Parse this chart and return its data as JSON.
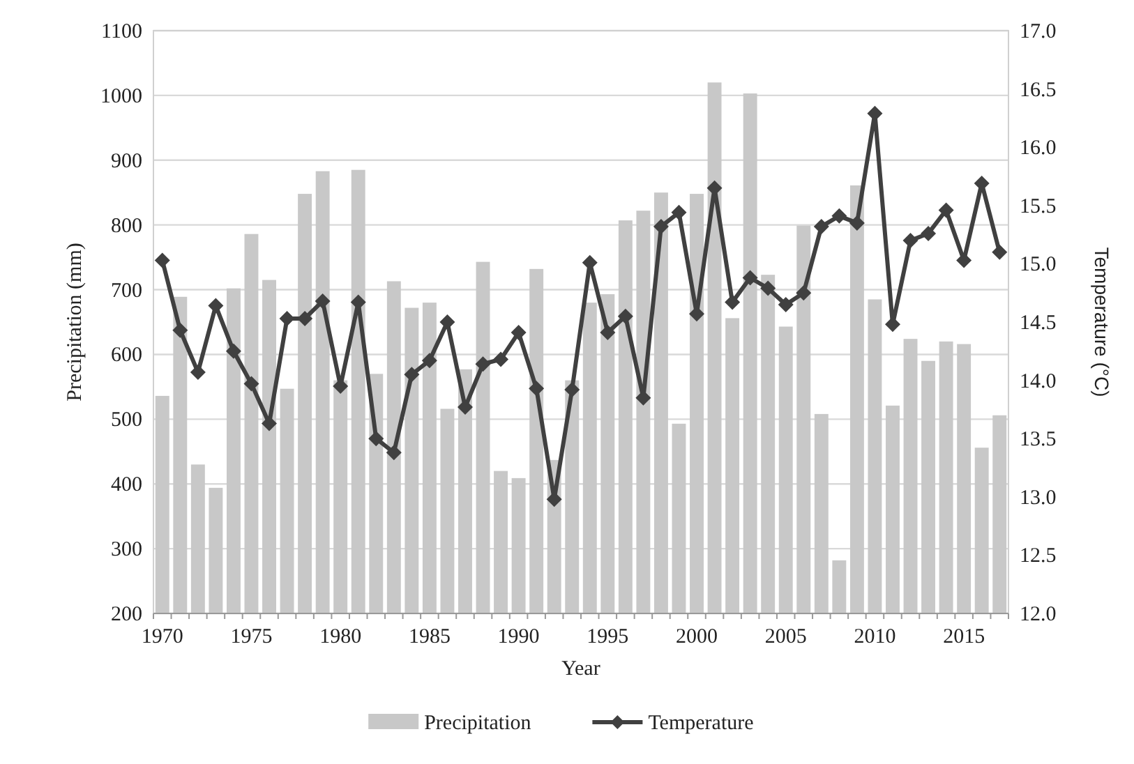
{
  "chart_data": {
    "type": "bar",
    "xlabel": "Year",
    "ylabel": "Precipitation (mm)",
    "y2label": "Temperature (°C)",
    "x": [
      1970,
      1971,
      1972,
      1973,
      1974,
      1975,
      1976,
      1977,
      1978,
      1979,
      1980,
      1981,
      1982,
      1983,
      1984,
      1985,
      1986,
      1987,
      1988,
      1989,
      1990,
      1991,
      1992,
      1993,
      1994,
      1995,
      1996,
      1997,
      1998,
      1999,
      2000,
      2001,
      2002,
      2003,
      2004,
      2005,
      2006,
      2007,
      2008,
      2009,
      2010,
      2011,
      2012,
      2013,
      2014,
      2015,
      2016,
      2017
    ],
    "xlim": [
      1969.5,
      2017.5
    ],
    "xticks": [
      1970,
      1975,
      1980,
      1985,
      1990,
      1995,
      2000,
      2005,
      2010,
      2015
    ],
    "ylim": [
      200,
      1100
    ],
    "yticks": [
      200,
      300,
      400,
      500,
      600,
      700,
      800,
      900,
      1000,
      1100
    ],
    "y2lim": [
      12.0,
      17.0
    ],
    "y2ticks": [
      {
        "value": 12,
        "label": "12.0"
      },
      {
        "value": 12.5,
        "label": "12.5"
      },
      {
        "value": 13,
        "label": "13.0"
      },
      {
        "value": 13.5,
        "label": "13.5"
      },
      {
        "value": 14,
        "label": "14.0"
      },
      {
        "value": 14.5,
        "label": "14.5"
      },
      {
        "value": 15,
        "label": "15.0"
      },
      {
        "value": 15.5,
        "label": "15.5"
      },
      {
        "value": 16,
        "label": "16.0"
      },
      {
        "value": 16.5,
        "label": "16.5"
      },
      {
        "value": 17,
        "label": "17.0"
      }
    ],
    "grid": "y",
    "legend": "bottom",
    "series": [
      {
        "name": "Precipitation",
        "color": "#c8c8c8",
        "values": [
          536,
          689,
          430,
          394,
          702,
          786,
          715,
          547,
          848,
          883,
          560,
          885,
          570,
          713,
          672,
          680,
          516,
          577,
          743,
          420,
          409,
          732,
          437,
          560,
          680,
          693,
          807,
          822,
          850,
          493,
          848,
          1020,
          656,
          1003,
          723,
          643,
          799,
          508,
          282,
          861,
          685,
          521,
          624,
          590,
          620,
          616,
          456,
          506
        ]
      },
      {
        "name": "Temperature",
        "type": "line",
        "axis": "y2",
        "color": "#404040",
        "marker": "diamond",
        "line_style": "solid",
        "values": [
          15.03,
          14.43,
          14.07,
          14.64,
          14.25,
          13.97,
          13.63,
          14.53,
          14.53,
          14.68,
          13.95,
          14.67,
          13.5,
          13.38,
          14.05,
          14.17,
          14.5,
          13.77,
          14.14,
          14.18,
          14.41,
          13.93,
          12.98,
          13.92,
          15.01,
          14.41,
          14.55,
          13.85,
          15.32,
          15.44,
          14.57,
          15.65,
          14.67,
          14.88,
          14.79,
          14.65,
          14.75,
          15.32,
          15.41,
          15.35,
          16.29,
          14.48,
          15.2,
          15.26,
          15.46,
          15.03,
          15.69,
          15.1
        ]
      }
    ]
  }
}
